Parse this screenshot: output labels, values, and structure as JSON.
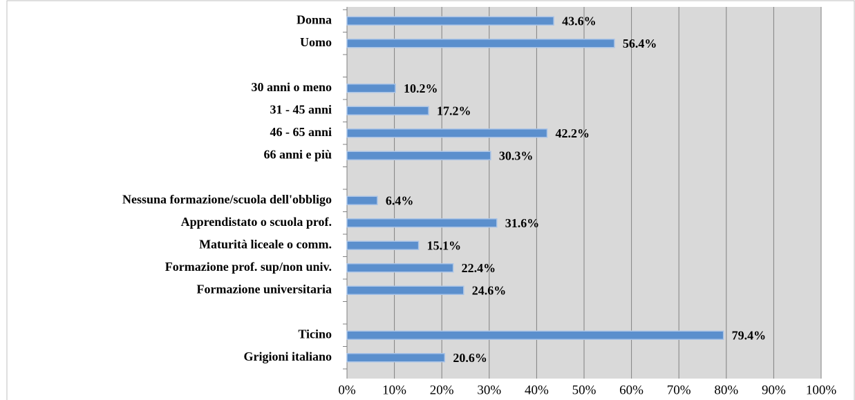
{
  "chart_data": {
    "type": "hbar",
    "categories": [
      "Donna",
      "Uomo",
      null,
      "30 anni o meno",
      "31 - 45 anni",
      "46 - 65 anni",
      "66 anni e più",
      null,
      "Nessuna formazione/scuola dell'obbligo",
      "Apprendistato o scuola prof.",
      "Maturità liceale o comm.",
      "Formazione prof. sup/non univ.",
      "Formazione universitaria",
      null,
      "Ticino",
      "Grigioni italiano"
    ],
    "values": [
      43.6,
      56.4,
      null,
      10.2,
      17.2,
      42.2,
      30.3,
      null,
      6.4,
      31.6,
      15.1,
      22.4,
      24.6,
      null,
      79.4,
      20.6
    ],
    "value_labels": [
      "43.6%",
      "56.4%",
      null,
      "10.2%",
      "17.2%",
      "42.2%",
      "30.3%",
      null,
      "6.4%",
      "31.6%",
      "15.1%",
      "22.4%",
      "24.6%",
      null,
      "79.4%",
      "20.6%"
    ],
    "color": "#5b8fcd",
    "xlim": [
      0,
      100
    ],
    "xticks": [
      {
        "value": 0,
        "label": "0%"
      },
      {
        "value": 10,
        "label": "10%"
      },
      {
        "value": 20,
        "label": "20%"
      },
      {
        "value": 30,
        "label": "30%"
      },
      {
        "value": 40,
        "label": "40%"
      },
      {
        "value": 50,
        "label": "50%"
      },
      {
        "value": 60,
        "label": "60%"
      },
      {
        "value": 70,
        "label": "70%"
      },
      {
        "value": 80,
        "label": "80%"
      },
      {
        "value": 90,
        "label": "90%"
      },
      {
        "value": 100,
        "label": "100%"
      }
    ],
    "grid": true
  }
}
